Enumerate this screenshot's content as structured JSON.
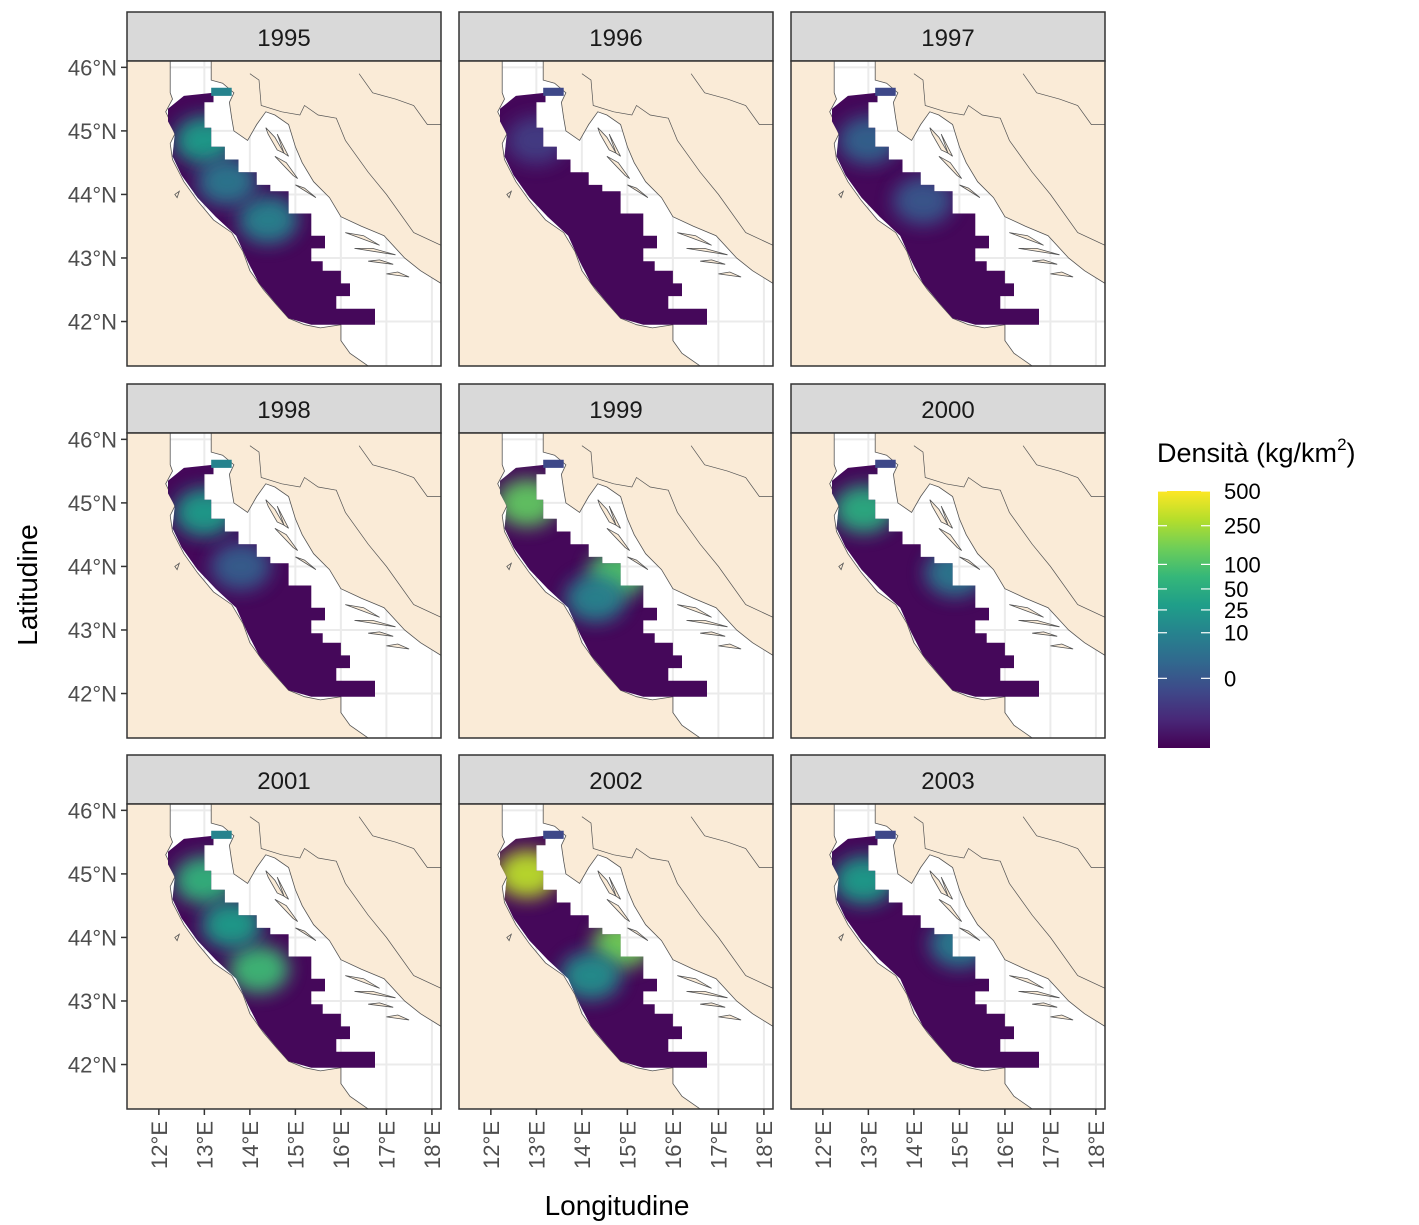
{
  "figure": {
    "ylabel": "Latitudine",
    "xlabel": "Longitudine",
    "lat_ticks": [
      "46°N",
      "45°N",
      "44°N",
      "43°N",
      "42°N"
    ],
    "lat_values": [
      46,
      45,
      44,
      43,
      42
    ],
    "lon_ticks": [
      "12°E",
      "13°E",
      "14°E",
      "15°E",
      "16°E",
      "17°E",
      "18°E"
    ],
    "lon_values": [
      12,
      13,
      14,
      15,
      16,
      17,
      18
    ],
    "lon_range": [
      11.3,
      18.2
    ],
    "lat_range": [
      41.3,
      46.1
    ]
  },
  "legend": {
    "title_main": "Densità (kg/km",
    "title_sup": "2",
    "title_close": ")",
    "labels": [
      "500",
      "250",
      "100",
      "50",
      "25",
      "10",
      "0"
    ],
    "values": [
      500,
      250,
      100,
      50,
      25,
      10,
      0
    ],
    "colors": [
      "#fde725",
      "#b5de2b",
      "#6ece58",
      "#35b779",
      "#1f9e89",
      "#26828e",
      "#31688e",
      "#3e4989",
      "#482878",
      "#440154"
    ]
  },
  "colors": {
    "land": "#faebd7",
    "land_border": "#555555",
    "sea": "#ffffff",
    "grid": "#ebebeb",
    "strip_bg": "#d9d9d9",
    "panel_border": "#333333",
    "text": "#4d4d4d"
  },
  "panels": [
    {
      "year": "1995",
      "hot": [
        {
          "lon": 13.0,
          "lat": 44.85,
          "v": 0.55
        },
        {
          "lon": 14.4,
          "lat": 43.6,
          "v": 0.45
        },
        {
          "lon": 13.5,
          "lat": 44.2,
          "v": 0.4
        }
      ]
    },
    {
      "year": "1996",
      "hot": [
        {
          "lon": 13.0,
          "lat": 44.85,
          "v": 0.18
        }
      ]
    },
    {
      "year": "1997",
      "hot": [
        {
          "lon": 13.0,
          "lat": 44.85,
          "v": 0.32
        },
        {
          "lon": 14.2,
          "lat": 43.9,
          "v": 0.28
        }
      ]
    },
    {
      "year": "1998",
      "hot": [
        {
          "lon": 13.0,
          "lat": 44.85,
          "v": 0.55
        },
        {
          "lon": 13.8,
          "lat": 44.0,
          "v": 0.3
        }
      ]
    },
    {
      "year": "1999",
      "hot": [
        {
          "lon": 12.8,
          "lat": 45.0,
          "v": 0.75
        },
        {
          "lon": 14.8,
          "lat": 43.9,
          "v": 0.72
        },
        {
          "lon": 14.3,
          "lat": 43.5,
          "v": 0.45
        }
      ]
    },
    {
      "year": "2000",
      "hot": [
        {
          "lon": 12.9,
          "lat": 44.9,
          "v": 0.62
        },
        {
          "lon": 14.9,
          "lat": 43.9,
          "v": 0.4
        }
      ]
    },
    {
      "year": "2001",
      "hot": [
        {
          "lon": 13.0,
          "lat": 44.9,
          "v": 0.65
        },
        {
          "lon": 14.2,
          "lat": 43.5,
          "v": 0.68
        },
        {
          "lon": 13.6,
          "lat": 44.2,
          "v": 0.55
        }
      ]
    },
    {
      "year": "2002",
      "hot": [
        {
          "lon": 12.8,
          "lat": 45.0,
          "v": 0.9
        },
        {
          "lon": 14.9,
          "lat": 43.9,
          "v": 0.78
        },
        {
          "lon": 14.2,
          "lat": 43.4,
          "v": 0.5
        }
      ]
    },
    {
      "year": "2003",
      "hot": [
        {
          "lon": 12.9,
          "lat": 44.9,
          "v": 0.55
        },
        {
          "lon": 15.0,
          "lat": 43.9,
          "v": 0.42
        }
      ]
    }
  ]
}
